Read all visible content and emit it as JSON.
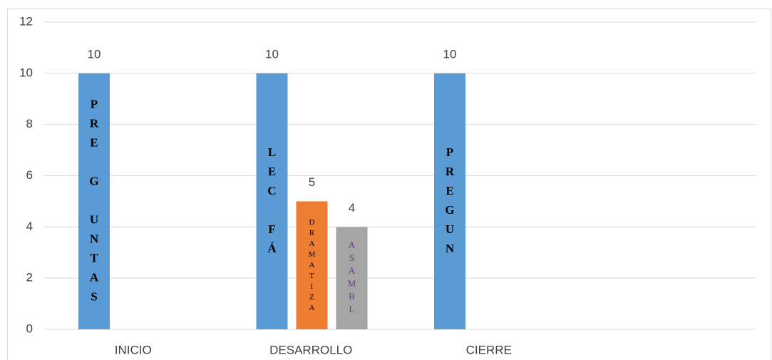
{
  "chart_data": {
    "type": "bar",
    "categories": [
      "INICIO",
      "DESARROLLO",
      "CIERRE",
      null
    ],
    "series": [
      {
        "color": "#5b9bd5",
        "text_color": "#000000",
        "values": [
          10,
          10,
          10,
          null
        ],
        "bar_texts": [
          "PRE G UNTAS",
          "LEC FÁ",
          "PREGUN",
          null
        ]
      },
      {
        "color": "#ed7d31",
        "text_color": "#000000",
        "values": [
          null,
          5,
          null,
          null
        ],
        "bar_texts": [
          null,
          "DRAMATIZA",
          null,
          null
        ]
      },
      {
        "color": "#a5a5a5",
        "text_color": "#7030a0",
        "values": [
          null,
          4,
          null,
          null
        ],
        "bar_texts": [
          null,
          "ASAMBL",
          null,
          null
        ]
      }
    ],
    "ylim": [
      0,
      12
    ],
    "yticks": [
      0,
      2,
      4,
      6,
      8,
      10,
      12
    ],
    "grid": true
  }
}
